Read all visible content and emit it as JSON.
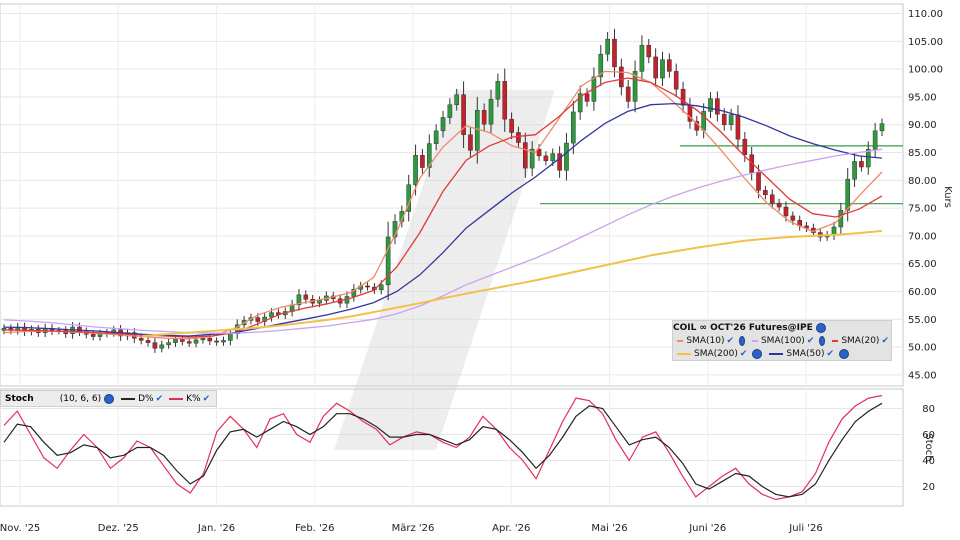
{
  "chart_data": [
    {
      "type": "candlestick",
      "title": "COIL ∞ OCT'26 Futures@IPE",
      "ylabel": "Kurs",
      "ylim": [
        43,
        111
      ],
      "yticks": [
        "45.00",
        "50.00",
        "55.00",
        "60.00",
        "65.00",
        "70.00",
        "75.00",
        "80.00",
        "85.00",
        "90.00",
        "95.00",
        "100.00",
        "105.00",
        "110.00"
      ],
      "xticks": [
        "Nov. '25",
        "Dez. '25",
        "Jan. '26",
        "Feb. '26",
        "März '26",
        "Apr. '26",
        "Mai '26",
        "Juni '26",
        "Juli '26"
      ],
      "grid": true,
      "candle_colors": {
        "up": "#2e9a3e",
        "down": "#c8202a"
      },
      "legend": [
        {
          "name": "SMA(10)",
          "color": "#f0886a"
        },
        {
          "name": "SMA(100)",
          "color": "#c9a2f0"
        },
        {
          "name": "SMA(20)",
          "color": "#e03a3a"
        },
        {
          "name": "SMA(200)",
          "color": "#f2c04c"
        },
        {
          "name": "SMA(50)",
          "color": "#3436a0"
        }
      ],
      "horizontal_lines": [
        86.2,
        75.8
      ],
      "closes": [
        53.4,
        53.0,
        53.6,
        52.8,
        53.2,
        52.6,
        53.4,
        52.9,
        53.0,
        52.4,
        53.6,
        52.8,
        52.3,
        51.9,
        52.4,
        52.6,
        53.1,
        52.0,
        52.6,
        51.6,
        51.2,
        50.8,
        49.8,
        50.4,
        50.8,
        51.4,
        51.0,
        50.7,
        51.3,
        51.6,
        51.1,
        50.9,
        51.2,
        52.4,
        54.0,
        54.8,
        55.3,
        54.6,
        55.4,
        56.2,
        55.8,
        56.4,
        57.6,
        59.4,
        58.6,
        57.9,
        58.4,
        59.2,
        58.7,
        57.9,
        59.1,
        60.4,
        61.0,
        60.8,
        60.3,
        61.2,
        69.8,
        72.6,
        74.4,
        79.2,
        84.5,
        82.3,
        86.6,
        88.9,
        91.3,
        93.6,
        95.4,
        88.2,
        85.4,
        92.6,
        90.1,
        94.6,
        97.8,
        91.0,
        88.6,
        86.8,
        82.2,
        85.6,
        84.4,
        83.5,
        84.8,
        81.8,
        86.7,
        92.3,
        95.6,
        94.2,
        98.6,
        102.7,
        105.4,
        100.4,
        96.8,
        94.2,
        99.6,
        104.3,
        102.2,
        98.4,
        101.7,
        99.6,
        96.4,
        93.5,
        90.6,
        89.0,
        92.4,
        94.7,
        91.9,
        90.0,
        91.8,
        87.4,
        84.6,
        81.4,
        78.2,
        77.4,
        75.9,
        75.2,
        73.6,
        72.8,
        71.8,
        71.4,
        70.6,
        69.8,
        70.2,
        71.6,
        74.6,
        80.2,
        83.4,
        82.4,
        85.6,
        88.9,
        90.2
      ],
      "sma": {
        "SMA(10)": [
          52.6,
          52.8,
          52.9,
          52.7,
          52.5,
          52.2,
          51.9,
          51.6,
          51.5,
          51.9,
          53.4,
          55.8,
          57.2,
          58.0,
          58.8,
          59.8,
          62.5,
          70.8,
          80.4,
          86.0,
          89.8,
          88.6,
          86.2,
          85.0,
          91.0,
          97.0,
          99.6,
          99.4,
          97.6,
          94.0,
          90.2,
          85.6,
          80.6,
          76.0,
          72.6,
          70.8,
          72.4,
          77.2,
          81.5
        ],
        "SMA(20)": [
          53.1,
          53.0,
          52.9,
          52.8,
          52.6,
          52.4,
          52.2,
          52.0,
          51.8,
          52.0,
          52.6,
          54.2,
          56.0,
          57.0,
          57.8,
          58.8,
          60.2,
          64.4,
          70.6,
          78.0,
          83.6,
          86.2,
          87.8,
          88.2,
          91.4,
          95.2,
          97.6,
          98.4,
          97.6,
          95.4,
          92.6,
          88.8,
          84.6,
          80.6,
          76.6,
          74.0,
          73.4,
          74.8,
          77.2
        ],
        "SMA(50)": [
          53.6,
          53.5,
          53.3,
          53.1,
          52.9,
          52.6,
          52.3,
          52.1,
          52.0,
          52.3,
          52.6,
          53.4,
          54.2,
          55.0,
          55.8,
          56.8,
          58.0,
          60.0,
          63.0,
          67.0,
          71.4,
          74.6,
          77.8,
          80.6,
          83.8,
          87.2,
          90.2,
          92.4,
          93.6,
          93.8,
          93.4,
          92.6,
          91.4,
          89.8,
          88.0,
          86.6,
          85.4,
          84.4,
          84.0
        ],
        "SMA(100)": [
          54.9,
          54.7,
          54.4,
          54.0,
          53.6,
          53.3,
          53.0,
          52.8,
          52.6,
          52.5,
          52.5,
          52.7,
          53.0,
          53.4,
          53.8,
          54.4,
          55.0,
          56.0,
          57.4,
          59.2,
          61.2,
          62.8,
          64.4,
          66.0,
          67.8,
          69.8,
          71.8,
          73.8,
          75.6,
          77.2,
          78.6,
          79.8,
          80.9,
          81.9,
          82.8,
          83.6,
          84.4,
          85.0,
          85.6
        ],
        "SMA(200)": [
          null,
          null,
          null,
          null,
          null,
          null,
          52.0,
          52.3,
          52.6,
          52.9,
          53.2,
          53.5,
          53.9,
          54.4,
          54.9,
          55.5,
          56.3,
          57.1,
          57.9,
          58.8,
          59.6,
          60.4,
          61.2,
          62.0,
          62.9,
          63.8,
          64.7,
          65.6,
          66.5,
          67.2,
          67.9,
          68.5,
          69.1,
          69.5,
          69.8,
          70.0,
          70.2,
          70.5,
          70.9
        ]
      }
    },
    {
      "type": "line",
      "title": "Stoch",
      "params": "(10, 6, 6)",
      "ylabel": "Stoch",
      "ylim": [
        5,
        95
      ],
      "yticks": [
        "20",
        "40",
        "60",
        "80"
      ],
      "grid": true,
      "legend": [
        {
          "name": "D%",
          "color": "#222222"
        },
        {
          "name": "K%",
          "color": "#e0305a"
        }
      ],
      "series": [
        {
          "name": "K%",
          "values": [
            67,
            78,
            60,
            42,
            34,
            48,
            60,
            50,
            34,
            42,
            55,
            50,
            36,
            22,
            15,
            30,
            62,
            74,
            64,
            50,
            72,
            76,
            60,
            54,
            74,
            84,
            78,
            70,
            64,
            52,
            58,
            62,
            60,
            54,
            50,
            58,
            74,
            64,
            50,
            40,
            26,
            48,
            70,
            88,
            86,
            76,
            56,
            40,
            58,
            62,
            46,
            28,
            12,
            20,
            28,
            34,
            22,
            14,
            10,
            12,
            16,
            30,
            54,
            72,
            82,
            88,
            90
          ]
        },
        {
          "name": "D%",
          "values": [
            54,
            68,
            66,
            54,
            44,
            46,
            52,
            50,
            42,
            44,
            50,
            50,
            44,
            32,
            22,
            28,
            48,
            62,
            64,
            58,
            64,
            70,
            66,
            60,
            66,
            76,
            76,
            72,
            66,
            58,
            58,
            60,
            60,
            56,
            52,
            56,
            66,
            64,
            56,
            46,
            34,
            44,
            58,
            74,
            82,
            80,
            66,
            52,
            56,
            58,
            50,
            38,
            22,
            18,
            24,
            30,
            28,
            20,
            14,
            12,
            14,
            22,
            40,
            56,
            70,
            78,
            84
          ]
        }
      ]
    }
  ]
}
